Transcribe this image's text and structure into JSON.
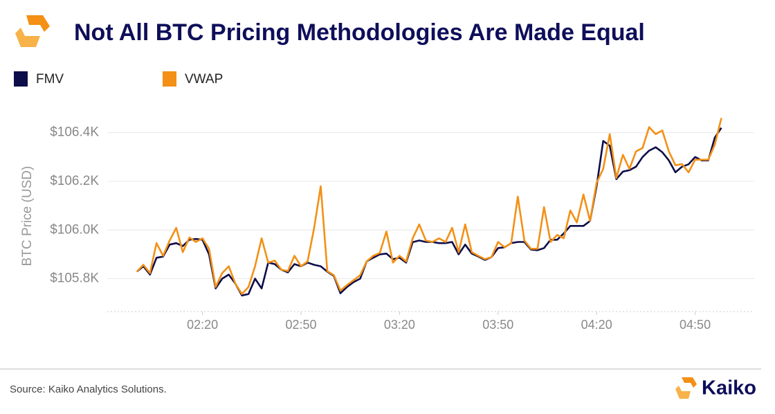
{
  "chart_data": {
    "type": "line",
    "title": "Not All BTC Pricing Methodologies Are Made Equal",
    "ylabel": "BTC Price (USD)",
    "source": "Source: Kaiko Analytics Solutions.",
    "brand": "Kaiko",
    "legend": "top-left",
    "grid": true,
    "xlim": [
      111,
      308
    ],
    "xticks": [
      {
        "value": 140,
        "label": "02:20"
      },
      {
        "value": 170,
        "label": "02:50"
      },
      {
        "value": 200,
        "label": "03:20"
      },
      {
        "value": 230,
        "label": "03:50"
      },
      {
        "value": 260,
        "label": "04:20"
      },
      {
        "value": 290,
        "label": "04:50"
      }
    ],
    "ylim": [
      105665,
      106490
    ],
    "yticks": [
      {
        "value": 105800,
        "label": "$105.8K"
      },
      {
        "value": 106000,
        "label": "$106.0K"
      },
      {
        "value": 106200,
        "label": "$106.2K"
      },
      {
        "value": 106400,
        "label": "$106.4K"
      }
    ],
    "x": [
      120,
      122,
      124,
      126,
      128,
      130,
      132,
      134,
      136,
      138,
      140,
      142,
      144,
      146,
      148,
      150,
      152,
      154,
      156,
      158,
      160,
      162,
      164,
      166,
      168,
      170,
      172,
      174,
      176,
      178,
      180,
      182,
      184,
      186,
      188,
      190,
      192,
      194,
      196,
      198,
      200,
      202,
      204,
      206,
      208,
      210,
      212,
      214,
      216,
      218,
      220,
      222,
      224,
      226,
      228,
      230,
      232,
      234,
      236,
      238,
      240,
      242,
      244,
      246,
      248,
      250,
      252,
      254,
      256,
      258,
      260,
      262,
      264,
      266,
      268,
      270,
      272,
      274,
      276,
      278,
      280,
      282,
      284,
      286,
      288,
      290,
      292,
      294,
      296,
      298
    ],
    "series": [
      {
        "name": "FMV",
        "color": "#0d0d4a",
        "values": [
          105829,
          105851,
          105817,
          105886,
          105891,
          105940,
          105946,
          105934,
          105960,
          105963,
          105960,
          105900,
          105760,
          105800,
          105817,
          105780,
          105731,
          105737,
          105800,
          105760,
          105866,
          105860,
          105837,
          105826,
          105860,
          105851,
          105866,
          105857,
          105851,
          105829,
          105811,
          105740,
          105766,
          105786,
          105800,
          105871,
          105886,
          105900,
          105903,
          105880,
          105886,
          105866,
          105950,
          105957,
          105951,
          105951,
          105946,
          105946,
          105951,
          105900,
          105940,
          105903,
          105891,
          105877,
          105889,
          105926,
          105929,
          105946,
          105951,
          105951,
          105920,
          105917,
          105926,
          105960,
          105960,
          105986,
          106017,
          106017,
          106017,
          106037,
          106180,
          106366,
          106346,
          106209,
          106240,
          106246,
          106260,
          106300,
          106326,
          106340,
          106320,
          106286,
          106237,
          106260,
          106270,
          106300,
          106286,
          106286,
          106380,
          106420
        ]
      },
      {
        "name": "VWAP",
        "color": "#f39015",
        "values": [
          105829,
          105857,
          105823,
          105946,
          105894,
          105957,
          106009,
          105909,
          105969,
          105951,
          105966,
          105923,
          105766,
          105823,
          105851,
          105780,
          105737,
          105766,
          105851,
          105966,
          105866,
          105874,
          105837,
          105831,
          105894,
          105851,
          105871,
          106009,
          106180,
          105831,
          105814,
          105751,
          105774,
          105794,
          105814,
          105871,
          105894,
          105906,
          105994,
          105866,
          105894,
          105871,
          105966,
          106023,
          105957,
          105951,
          105966,
          105951,
          106009,
          105909,
          106023,
          105909,
          105894,
          105880,
          105889,
          105951,
          105929,
          105946,
          106137,
          105957,
          105923,
          105923,
          106094,
          105951,
          105980,
          105966,
          106080,
          106031,
          106146,
          106037,
          106194,
          106251,
          106394,
          106214,
          106309,
          106251,
          106323,
          106337,
          106423,
          106394,
          106409,
          106323,
          106266,
          106271,
          106237,
          106289,
          106289,
          106289,
          106351,
          106460
        ]
      }
    ]
  }
}
